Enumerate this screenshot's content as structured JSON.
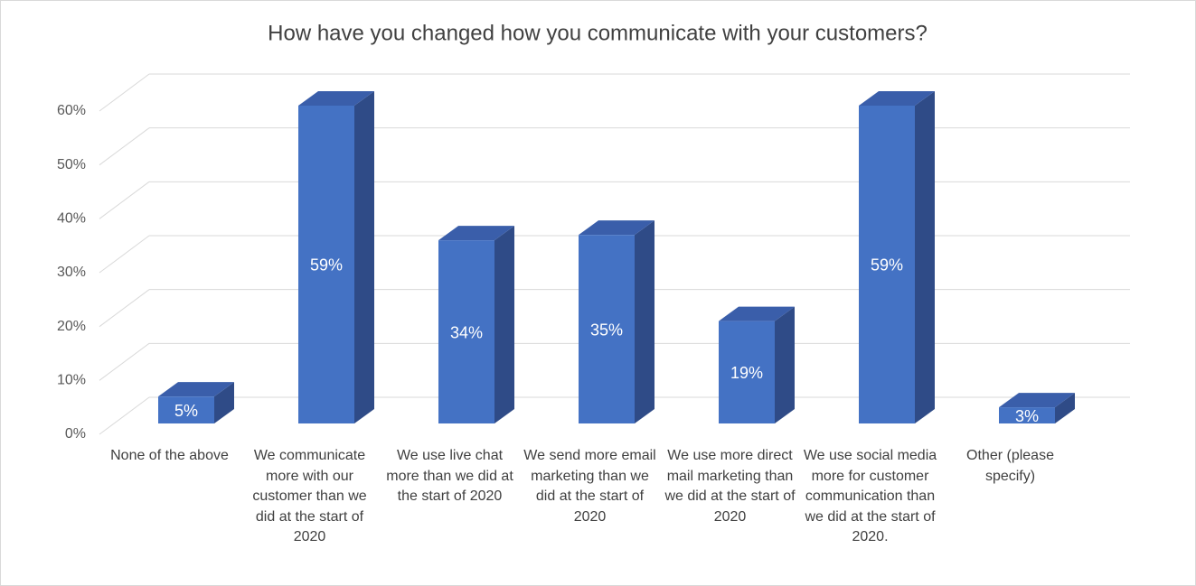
{
  "chart_data": {
    "type": "bar3d",
    "title": "How have you changed how you communicate with your customers?",
    "categories": [
      "None of the above",
      "We communicate more with our customer than we did at the start of 2020",
      "We use live chat more than we did at the start of 2020",
      "We send more email marketing than we did at the start of 2020",
      "We use more direct mail marketing than we did at the start of 2020",
      "We use social media more for customer communication than we did at the start of 2020.",
      "Other (please specify)"
    ],
    "values": [
      5,
      59,
      34,
      35,
      19,
      59,
      3
    ],
    "value_labels": [
      "5%",
      "59%",
      "34%",
      "35%",
      "19%",
      "59%",
      "3%"
    ],
    "color": "#4472c4",
    "ylim": [
      0,
      60
    ],
    "yticks": [
      {
        "value": 0,
        "label": "0%"
      },
      {
        "value": 10,
        "label": "10%"
      },
      {
        "value": 20,
        "label": "20%"
      },
      {
        "value": 30,
        "label": "30%"
      },
      {
        "value": 40,
        "label": "40%"
      },
      {
        "value": 50,
        "label": "50%"
      },
      {
        "value": 60,
        "label": "60%"
      }
    ],
    "grid": true
  }
}
